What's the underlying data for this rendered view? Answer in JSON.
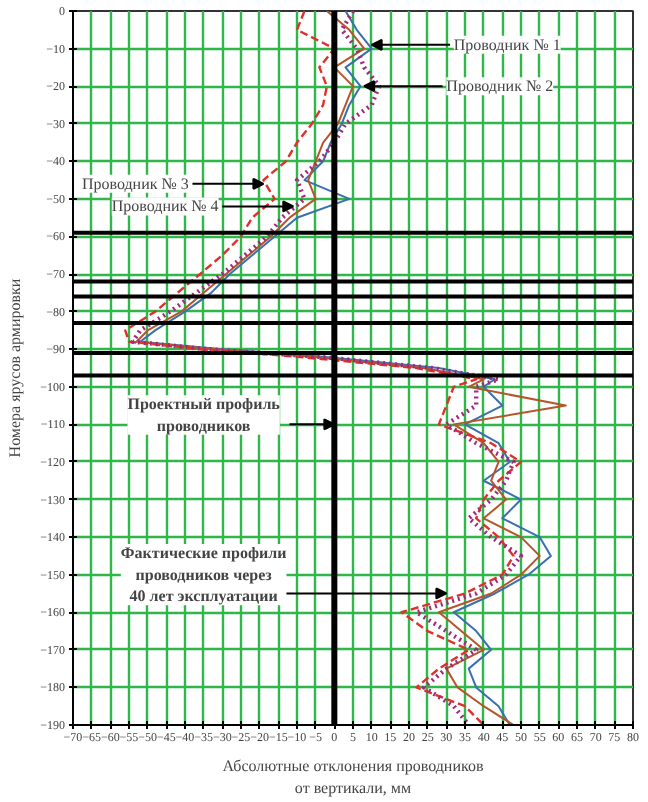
{
  "chart_data": {
    "type": "line",
    "xlabel": "Абсолютные отклонения проводников\nот вертикали, мм",
    "ylabel": "Номера ярусов армировки",
    "xlim": [
      -70,
      80
    ],
    "xticks": [
      -70,
      -65,
      -60,
      -55,
      -50,
      -45,
      -40,
      -35,
      -30,
      -25,
      -20,
      -15,
      -10,
      -5,
      0,
      5,
      10,
      15,
      20,
      25,
      30,
      35,
      40,
      45,
      50,
      55,
      60,
      65,
      70,
      75,
      80
    ],
    "ylim": [
      -190,
      0
    ],
    "yticks": [
      0,
      -10,
      -20,
      -30,
      -40,
      -50,
      -60,
      -70,
      -80,
      -90,
      -100,
      -110,
      -120,
      -130,
      -140,
      -150,
      -160,
      -170,
      -180,
      -190
    ],
    "grid": true,
    "series": [
      {
        "color": "#3a6fb0",
        "line_style": "solid",
        "x": [
          3,
          6,
          10,
          3,
          7,
          4,
          2,
          -1,
          -3,
          -8,
          4,
          -10,
          -16,
          -22,
          -28,
          -33,
          -40,
          -48,
          -52,
          -30,
          -3,
          28,
          43,
          40,
          45,
          35,
          44,
          47,
          40,
          50,
          45,
          55,
          58,
          52,
          43,
          32,
          38,
          42,
          36,
          38,
          44,
          47
        ],
        "values": [
          0,
          -5,
          -10,
          -15,
          -20,
          -25,
          -30,
          -35,
          -40,
          -45,
          -50,
          -55,
          -60,
          -65,
          -70,
          -75,
          -80,
          -85,
          -88,
          -90,
          -92,
          -95,
          -98,
          -100,
          -105,
          -110,
          -115,
          -120,
          -125,
          -130,
          -135,
          -140,
          -145,
          -150,
          -155,
          -160,
          -165,
          -170,
          -175,
          -180,
          -185,
          -190
        ]
      },
      {
        "color": "#b5562a",
        "line_style": "solid",
        "x": [
          -2,
          4,
          8,
          0,
          5,
          3,
          1,
          -3,
          -5,
          -7,
          -5,
          -12,
          -17,
          -23,
          -29,
          -35,
          -41,
          -50,
          -53,
          -32,
          -6,
          24,
          40,
          36,
          62,
          32,
          40,
          44,
          42,
          46,
          40,
          50,
          55,
          50,
          42,
          28,
          34,
          40,
          30,
          33,
          40,
          48
        ],
        "values": [
          0,
          -5,
          -10,
          -15,
          -20,
          -25,
          -30,
          -35,
          -40,
          -45,
          -50,
          -55,
          -60,
          -65,
          -70,
          -75,
          -80,
          -85,
          -88,
          -90,
          -92,
          -95,
          -98,
          -100,
          -105,
          -110,
          -115,
          -120,
          -125,
          -130,
          -135,
          -140,
          -145,
          -150,
          -155,
          -160,
          -165,
          -170,
          -175,
          -180,
          -185,
          -190
        ]
      },
      {
        "color": "#e0302a",
        "line_style": "dashed",
        "x": [
          -8,
          -10,
          0,
          -4,
          -2,
          -3,
          -6,
          -10,
          -13,
          -19,
          -16,
          -22,
          -25,
          -30,
          -36,
          -42,
          -48,
          -56,
          -55,
          -36,
          -10,
          22,
          38,
          32,
          30,
          28,
          42,
          50,
          44,
          40,
          38,
          44,
          48,
          45,
          35,
          18,
          25,
          36,
          28,
          22,
          35,
          40
        ],
        "values": [
          0,
          -5,
          -10,
          -15,
          -20,
          -25,
          -30,
          -35,
          -40,
          -45,
          -50,
          -55,
          -60,
          -65,
          -70,
          -75,
          -80,
          -85,
          -88,
          -90,
          -92,
          -95,
          -98,
          -100,
          -105,
          -110,
          -115,
          -120,
          -125,
          -130,
          -135,
          -140,
          -145,
          -150,
          -155,
          -160,
          -165,
          -170,
          -175,
          -180,
          -185,
          -190
        ]
      },
      {
        "color": "#a0287f",
        "line_style": "dotted",
        "x": [
          5,
          2,
          6,
          8,
          12,
          10,
          3,
          0,
          -4,
          -10,
          -8,
          -14,
          -18,
          -24,
          -30,
          -37,
          -44,
          -52,
          -54,
          -34,
          -4,
          26,
          44,
          38,
          38,
          30,
          38,
          48,
          46,
          42,
          36,
          42,
          50,
          46,
          38,
          22,
          30,
          38,
          30,
          24,
          32,
          36
        ],
        "values": [
          0,
          -5,
          -10,
          -15,
          -20,
          -25,
          -30,
          -35,
          -40,
          -45,
          -50,
          -55,
          -60,
          -65,
          -70,
          -75,
          -80,
          -85,
          -88,
          -90,
          -92,
          -95,
          -98,
          -100,
          -105,
          -110,
          -115,
          -120,
          -125,
          -130,
          -135,
          -140,
          -145,
          -150,
          -155,
          -160,
          -165,
          -170,
          -175,
          -180,
          -185,
          -190
        ]
      }
    ],
    "ref_lines": [
      {
        "axis": "x",
        "value": 0
      },
      {
        "axis": "y",
        "value": -59
      },
      {
        "axis": "y",
        "value": -72
      },
      {
        "axis": "y",
        "value": -76
      },
      {
        "axis": "y",
        "value": -83
      },
      {
        "axis": "y",
        "value": -91
      },
      {
        "axis": "y",
        "value": -97
      }
    ],
    "annotations": [
      {
        "text": "Проводник № 1",
        "x": 10,
        "y": -9
      },
      {
        "text": "Проводник № 2",
        "x": 8,
        "y": -20
      },
      {
        "text": "Проводник № 3",
        "x": -19,
        "y": -46
      },
      {
        "text": "Проводник № 4",
        "x": -11,
        "y": -52
      },
      {
        "text": "Проектный профиль\nпроводников",
        "x": 0,
        "y": -110
      },
      {
        "text": "Фактические профили\nпроводников через\n40 лет эксплуатации",
        "x": 30,
        "y": -155
      }
    ]
  }
}
